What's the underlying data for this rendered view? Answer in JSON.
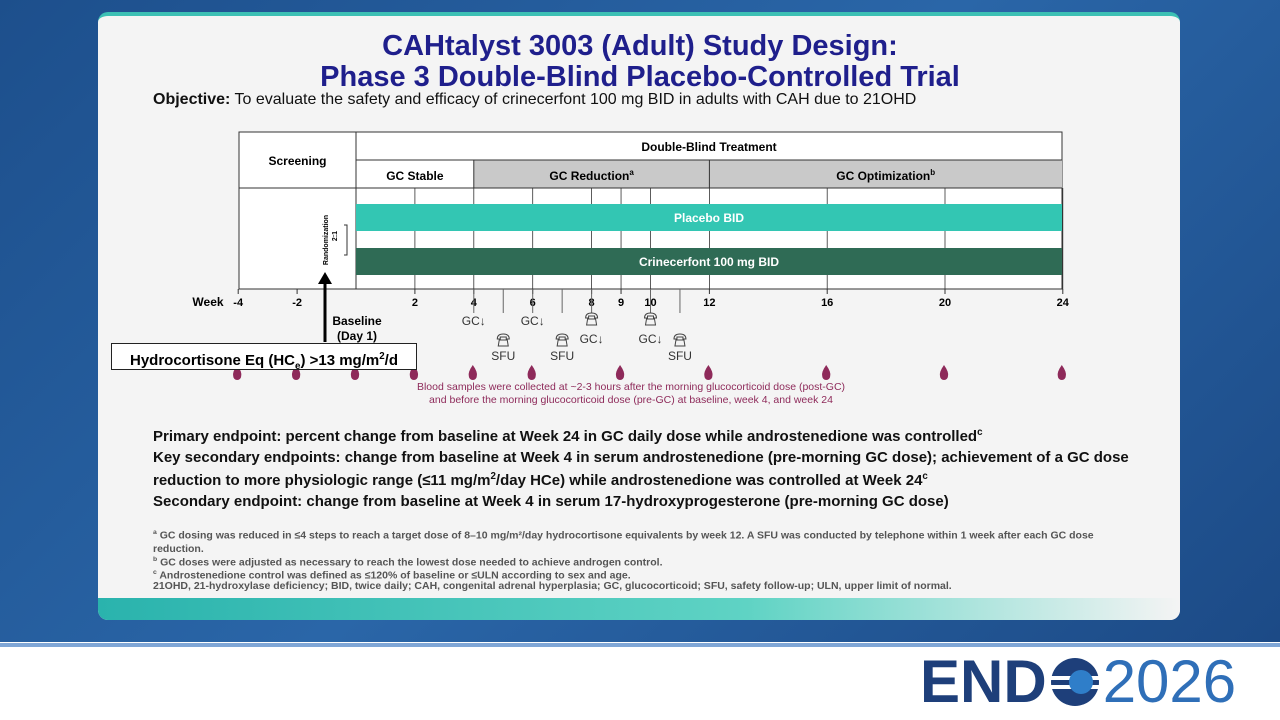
{
  "header": {
    "title_line1": "CAHtalyst 3003 (Adult) Study Design:",
    "title_line2": "Phase 3 Double-Blind Placebo-Controlled Trial"
  },
  "objective": {
    "label": "Objective:",
    "text": "To evaluate the safety and efficacy of crinecerfont 100 mg BID in adults with CAH due to 21OHD"
  },
  "diagram": {
    "screening": "Screening",
    "double_blind": "Double-Blind Treatment",
    "phases": [
      {
        "label": "GC Stable",
        "note": ""
      },
      {
        "label": "GC Reduction",
        "note": "a"
      },
      {
        "label": "GC Optimization",
        "note": "b"
      }
    ],
    "arms": [
      "Placebo BID",
      "Crinecerfont 100 mg BID"
    ],
    "randomization": "Randomization",
    "ratio": "2:1",
    "week_label": "Week",
    "weeks": [
      -4,
      -2,
      2,
      4,
      6,
      8,
      9,
      10,
      12,
      16,
      20,
      24
    ],
    "baseline": "Baseline",
    "baseline_day": "(Day 1)",
    "events": [
      {
        "top": "GC↓",
        "bottom": ""
      },
      {
        "top": "",
        "bottom": "SFU"
      },
      {
        "top": "GC↓",
        "bottom": ""
      },
      {
        "top": "",
        "bottom": "SFU"
      },
      {
        "top": "",
        "bottom": "GC↓"
      },
      {
        "top": "",
        "bottom": "GC↓"
      },
      {
        "top": "",
        "bottom": "SFU"
      }
    ],
    "hc_box": {
      "text1": "Hydrocortisone Eq (HC",
      "sub": "e",
      "text2": ") >13 mg/m",
      "sup": "2",
      "text3": "/d"
    },
    "blood_note": [
      "Blood samples were collected at ~2-3 hours after the morning glucocorticoid dose (post-GC)",
      "and before the morning glucocorticoid dose (pre-GC) at baseline, week 4, and week 24"
    ]
  },
  "endpoints": {
    "primary": {
      "text": "Primary endpoint: percent change from baseline at Week 24 in GC daily dose while androstenedione was controlled",
      "note": "c"
    },
    "key_secondary": {
      "text_before": "Key secondary endpoints: change from baseline at Week 4 in serum androstenedione (pre-morning GC dose); achievement of a GC dose reduction to more physiologic range (≤11 mg/m",
      "sup": "2",
      "text_after": "/day HCe) while androstenedione was controlled at Week 24",
      "note": "c"
    },
    "secondary": "Secondary endpoint: change from baseline at Week 4 in serum 17-hydroxyprogesterone (pre-morning GC dose)"
  },
  "footnotes": [
    {
      "mark": "a",
      "text": "GC dosing was reduced in ≤4 steps to reach a target dose of 8–10 mg/m²/day hydrocortisone equivalents by week 12. A SFU was conducted by telephone within 1 week after each GC dose reduction."
    },
    {
      "mark": "b",
      "text": "GC doses were adjusted as necessary to reach the lowest dose needed to achieve androgen control."
    },
    {
      "mark": "c",
      "text": "Androstenedione control was defined as ≤120% of baseline or ≤ULN according to sex and age."
    }
  ],
  "abbreviations": "21OHD, 21-hydroxylase deficiency; BID, twice daily; CAH, congenital adrenal hyperplasia; GC, glucocorticoid; SFU, safety follow-up; ULN, upper limit of normal.",
  "logo": {
    "left": "END",
    "right": "2026"
  }
}
